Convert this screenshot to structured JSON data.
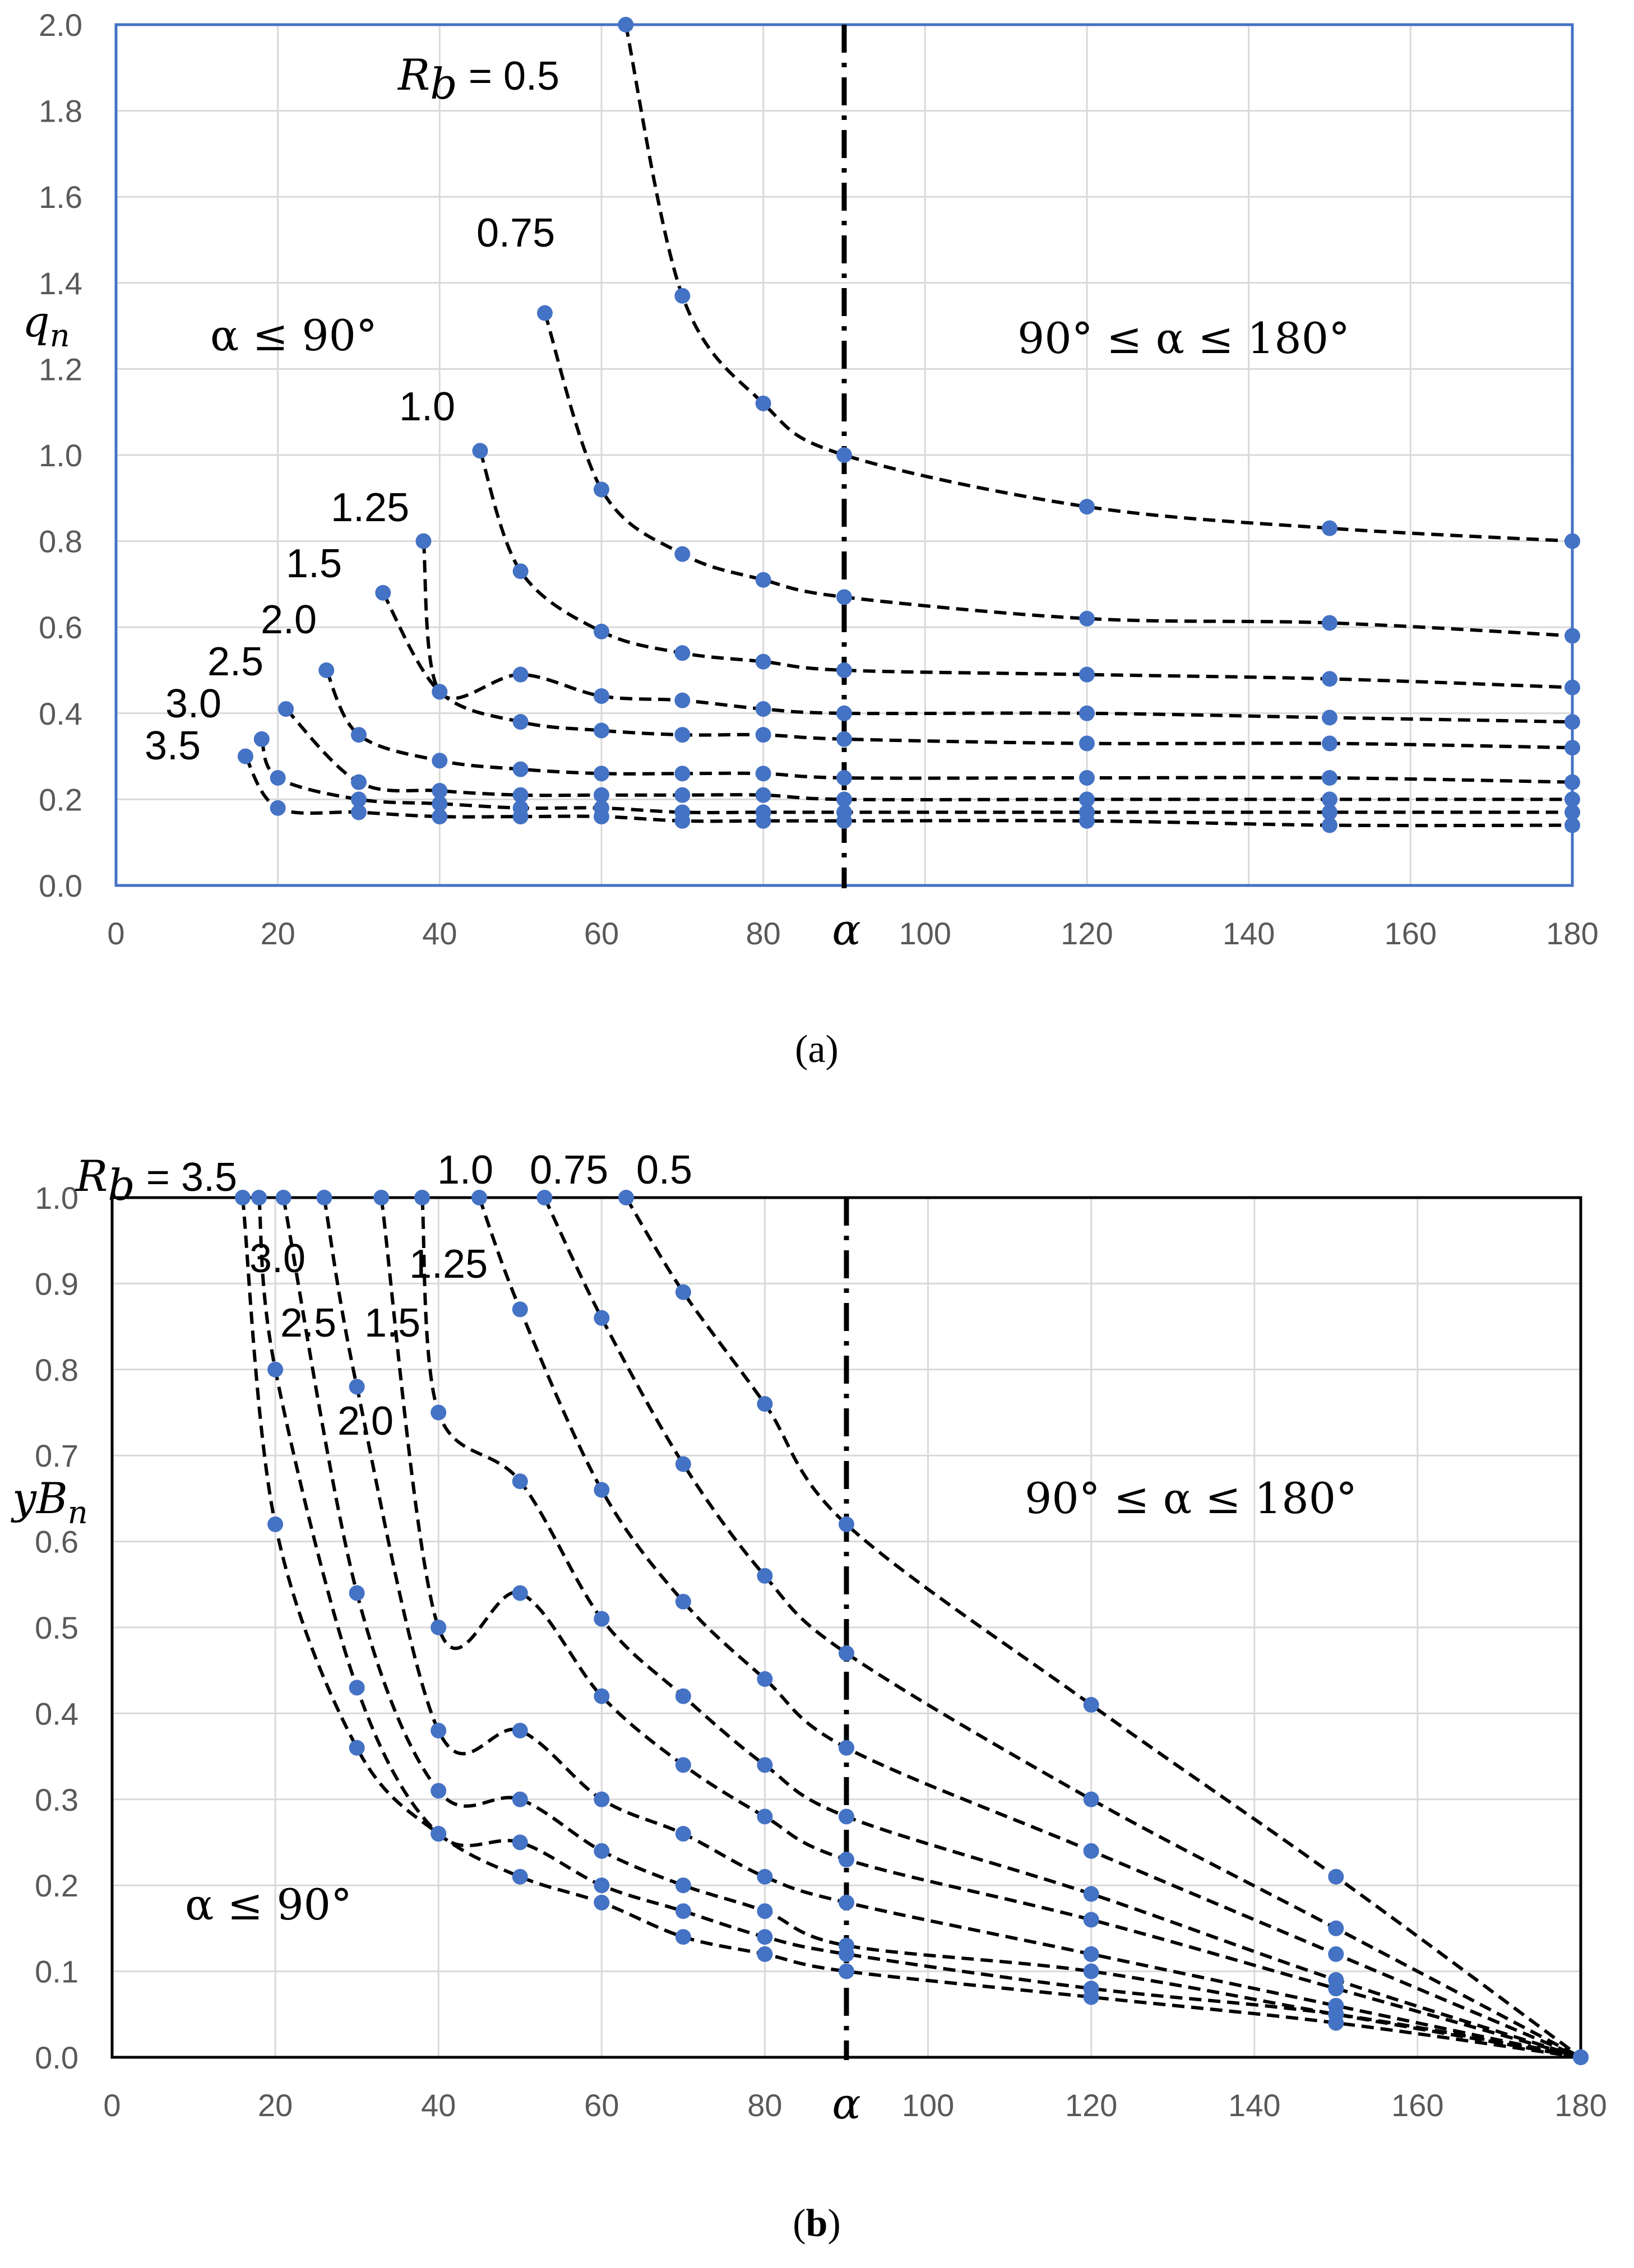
{
  "chart_data": [
    {
      "panel": "a",
      "caption": "(a)",
      "type": "line",
      "style": "dashed lines with markers",
      "title": "",
      "xlabel": "α",
      "ylabel": "q_n",
      "ylabel_main": "q",
      "ylabel_sub": "n",
      "xlim": [
        0,
        180
      ],
      "ylim": [
        0,
        2.0
      ],
      "x_ticks": [
        "0",
        "20",
        "40",
        "60",
        "80",
        "100",
        "120",
        "140",
        "160",
        "180"
      ],
      "y_ticks": [
        "0.0",
        "0.2",
        "0.4",
        "0.6",
        "0.8",
        "1.0",
        "1.2",
        "1.4",
        "1.6",
        "1.8",
        "2.0"
      ],
      "vline_x": 90,
      "grid": true,
      "frame_color": "#4472C4",
      "marker_color": "#4472C4",
      "region_left": "α ≤ 90°",
      "region_right": "90° ≤ α ≤ 180°",
      "series": [
        {
          "name": "R_b = 0.5",
          "label": "R b = 0.5",
          "label_parts": [
            "R",
            "b",
            " = 0.5"
          ],
          "points": [
            [
              63,
              2.0
            ],
            [
              70,
              1.37
            ],
            [
              80,
              1.12
            ],
            [
              90,
              1.0
            ],
            [
              120,
              0.88
            ],
            [
              150,
              0.83
            ],
            [
              180,
              0.8
            ]
          ]
        },
        {
          "name": "0.75",
          "label": "0.75",
          "points": [
            [
              53,
              1.33
            ],
            [
              60,
              0.92
            ],
            [
              70,
              0.77
            ],
            [
              80,
              0.71
            ],
            [
              90,
              0.67
            ],
            [
              120,
              0.62
            ],
            [
              150,
              0.61
            ],
            [
              180,
              0.58
            ]
          ]
        },
        {
          "name": "1.0",
          "label": "1.0",
          "points": [
            [
              45,
              1.01
            ],
            [
              50,
              0.73
            ],
            [
              60,
              0.59
            ],
            [
              70,
              0.54
            ],
            [
              80,
              0.52
            ],
            [
              90,
              0.5
            ],
            [
              120,
              0.49
            ],
            [
              150,
              0.48
            ],
            [
              180,
              0.46
            ]
          ]
        },
        {
          "name": "1.25",
          "label": "1.25",
          "points": [
            [
              38,
              0.8
            ],
            [
              40,
              0.45
            ],
            [
              50,
              0.49
            ],
            [
              60,
              0.44
            ],
            [
              70,
              0.43
            ],
            [
              80,
              0.41
            ],
            [
              90,
              0.4
            ],
            [
              120,
              0.4
            ],
            [
              150,
              0.39
            ],
            [
              180,
              0.38
            ]
          ]
        },
        {
          "name": "1.5",
          "label": "1.5",
          "points": [
            [
              33,
              0.68
            ],
            [
              40,
              0.45
            ],
            [
              50,
              0.38
            ],
            [
              60,
              0.36
            ],
            [
              70,
              0.35
            ],
            [
              80,
              0.35
            ],
            [
              90,
              0.34
            ],
            [
              120,
              0.33
            ],
            [
              150,
              0.33
            ],
            [
              180,
              0.32
            ]
          ]
        },
        {
          "name": "2.0",
          "label": "2.0",
          "points": [
            [
              26,
              0.5
            ],
            [
              30,
              0.35
            ],
            [
              40,
              0.29
            ],
            [
              50,
              0.27
            ],
            [
              60,
              0.26
            ],
            [
              70,
              0.26
            ],
            [
              80,
              0.26
            ],
            [
              90,
              0.25
            ],
            [
              120,
              0.25
            ],
            [
              150,
              0.25
            ],
            [
              180,
              0.24
            ]
          ]
        },
        {
          "name": "2.5",
          "label": "2.5",
          "points": [
            [
              21,
              0.41
            ],
            [
              30,
              0.24
            ],
            [
              40,
              0.22
            ],
            [
              50,
              0.21
            ],
            [
              60,
              0.21
            ],
            [
              70,
              0.21
            ],
            [
              80,
              0.21
            ],
            [
              90,
              0.2
            ],
            [
              120,
              0.2
            ],
            [
              150,
              0.2
            ],
            [
              180,
              0.2
            ]
          ]
        },
        {
          "name": "3.0",
          "label": "3.0",
          "points": [
            [
              18,
              0.34
            ],
            [
              20,
              0.25
            ],
            [
              30,
              0.2
            ],
            [
              40,
              0.19
            ],
            [
              50,
              0.18
            ],
            [
              60,
              0.18
            ],
            [
              70,
              0.17
            ],
            [
              80,
              0.17
            ],
            [
              90,
              0.17
            ],
            [
              120,
              0.17
            ],
            [
              150,
              0.17
            ],
            [
              180,
              0.17
            ]
          ]
        },
        {
          "name": "3.5",
          "label": "3.5",
          "points": [
            [
              16,
              0.3
            ],
            [
              20,
              0.18
            ],
            [
              30,
              0.17
            ],
            [
              40,
              0.16
            ],
            [
              50,
              0.16
            ],
            [
              60,
              0.16
            ],
            [
              70,
              0.15
            ],
            [
              80,
              0.15
            ],
            [
              90,
              0.15
            ],
            [
              120,
              0.15
            ],
            [
              150,
              0.14
            ],
            [
              180,
              0.14
            ]
          ]
        }
      ]
    },
    {
      "panel": "b",
      "caption": "(b)",
      "type": "line",
      "style": "dashed lines with markers",
      "title": "",
      "xlabel": "α",
      "ylabel": "yB_n",
      "ylabel_main": "yB",
      "ylabel_sub": "n",
      "xlim": [
        0,
        180
      ],
      "ylim": [
        0,
        1.0
      ],
      "x_ticks": [
        "0",
        "20",
        "40",
        "60",
        "80",
        "100",
        "120",
        "140",
        "160",
        "180"
      ],
      "y_ticks": [
        "0.0",
        "0.1",
        "0.2",
        "0.3",
        "0.4",
        "0.5",
        "0.6",
        "0.7",
        "0.8",
        "0.9",
        "1.0"
      ],
      "vline_x": 90,
      "grid": true,
      "frame_color": "#000000",
      "marker_color": "#4472C4",
      "region_left": "α ≤ 90°",
      "region_right": "90° ≤ α ≤ 180°",
      "series": [
        {
          "name": "0.5",
          "label": "0.5",
          "points": [
            [
              63,
              1.0
            ],
            [
              70,
              0.89
            ],
            [
              80,
              0.76
            ],
            [
              90,
              0.62
            ],
            [
              120,
              0.41
            ],
            [
              150,
              0.21
            ],
            [
              180,
              0.0
            ]
          ]
        },
        {
          "name": "0.75",
          "label": "0.75",
          "points": [
            [
              53,
              1.0
            ],
            [
              60,
              0.86
            ],
            [
              70,
              0.69
            ],
            [
              80,
              0.56
            ],
            [
              90,
              0.47
            ],
            [
              120,
              0.3
            ],
            [
              150,
              0.15
            ],
            [
              180,
              0.0
            ]
          ]
        },
        {
          "name": "1.0",
          "label": "1.0",
          "points": [
            [
              45,
              1.0
            ],
            [
              50,
              0.87
            ],
            [
              60,
              0.66
            ],
            [
              70,
              0.53
            ],
            [
              80,
              0.44
            ],
            [
              90,
              0.36
            ],
            [
              120,
              0.24
            ],
            [
              150,
              0.12
            ],
            [
              180,
              0.0
            ]
          ]
        },
        {
          "name": "1.25",
          "label": "1.25",
          "points": [
            [
              38,
              1.0
            ],
            [
              40,
              0.75
            ],
            [
              50,
              0.67
            ],
            [
              60,
              0.51
            ],
            [
              70,
              0.42
            ],
            [
              80,
              0.34
            ],
            [
              90,
              0.28
            ],
            [
              120,
              0.19
            ],
            [
              150,
              0.09
            ],
            [
              180,
              0.0
            ]
          ]
        },
        {
          "name": "1.5",
          "label": "1.5",
          "points": [
            [
              33,
              1.0
            ],
            [
              40,
              0.5
            ],
            [
              50,
              0.54
            ],
            [
              60,
              0.42
            ],
            [
              70,
              0.34
            ],
            [
              80,
              0.28
            ],
            [
              90,
              0.23
            ],
            [
              120,
              0.16
            ],
            [
              150,
              0.08
            ],
            [
              180,
              0.0
            ]
          ]
        },
        {
          "name": "2.0",
          "label": "2.0",
          "points": [
            [
              26,
              1.0
            ],
            [
              30,
              0.78
            ],
            [
              40,
              0.38
            ],
            [
              50,
              0.38
            ],
            [
              60,
              0.3
            ],
            [
              70,
              0.26
            ],
            [
              80,
              0.21
            ],
            [
              90,
              0.18
            ],
            [
              120,
              0.12
            ],
            [
              150,
              0.06
            ],
            [
              180,
              0.0
            ]
          ]
        },
        {
          "name": "2.5",
          "label": "2.5",
          "points": [
            [
              21,
              1.0
            ],
            [
              30,
              0.54
            ],
            [
              40,
              0.31
            ],
            [
              50,
              0.3
            ],
            [
              60,
              0.24
            ],
            [
              70,
              0.2
            ],
            [
              80,
              0.17
            ],
            [
              90,
              0.13
            ],
            [
              120,
              0.1
            ],
            [
              150,
              0.05
            ],
            [
              180,
              0.0
            ]
          ]
        },
        {
          "name": "3.0",
          "label": "3.0",
          "points": [
            [
              18,
              1.0
            ],
            [
              20,
              0.8
            ],
            [
              30,
              0.43
            ],
            [
              40,
              0.26
            ],
            [
              50,
              0.25
            ],
            [
              60,
              0.2
            ],
            [
              70,
              0.17
            ],
            [
              80,
              0.14
            ],
            [
              90,
              0.12
            ],
            [
              120,
              0.08
            ],
            [
              150,
              0.05
            ],
            [
              180,
              0.0
            ]
          ]
        },
        {
          "name": "R_b = 3.5",
          "label": "R b = 3.5",
          "label_parts": [
            "R",
            "b",
            " = 3.5"
          ],
          "points": [
            [
              16,
              1.0
            ],
            [
              20,
              0.62
            ],
            [
              30,
              0.36
            ],
            [
              40,
              0.26
            ],
            [
              50,
              0.21
            ],
            [
              60,
              0.18
            ],
            [
              70,
              0.14
            ],
            [
              80,
              0.12
            ],
            [
              90,
              0.1
            ],
            [
              120,
              0.07
            ],
            [
              150,
              0.04
            ],
            [
              180,
              0.0
            ]
          ]
        }
      ]
    }
  ]
}
